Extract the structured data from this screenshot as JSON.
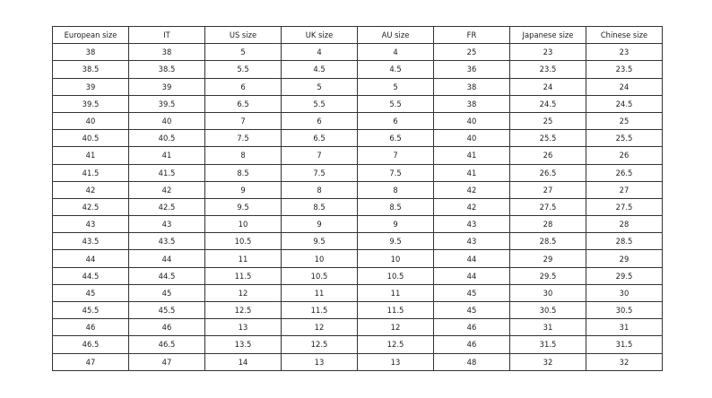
{
  "table": {
    "headers": [
      "European size",
      "IT",
      "US size",
      "UK size",
      "AU size",
      "FR",
      "Japanese size",
      "Chinese size"
    ],
    "rows": [
      [
        "38",
        "38",
        "5",
        "4",
        "4",
        "25",
        "23",
        "23"
      ],
      [
        "38.5",
        "38.5",
        "5.5",
        "4.5",
        "4.5",
        "36",
        "23.5",
        "23.5"
      ],
      [
        "39",
        "39",
        "6",
        "5",
        "5",
        "38",
        "24",
        "24"
      ],
      [
        "39.5",
        "39.5",
        "6.5",
        "5.5",
        "5.5",
        "38",
        "24.5",
        "24.5"
      ],
      [
        "40",
        "40",
        "7",
        "6",
        "6",
        "40",
        "25",
        "25"
      ],
      [
        "40.5",
        "40.5",
        "7.5",
        "6.5",
        "6.5",
        "40",
        "25.5",
        "25.5"
      ],
      [
        "41",
        "41",
        "8",
        "7",
        "7",
        "41",
        "26",
        "26"
      ],
      [
        "41.5",
        "41.5",
        "8.5",
        "7.5",
        "7.5",
        "41",
        "26.5",
        "26.5"
      ],
      [
        "42",
        "42",
        "9",
        "8",
        "8",
        "42",
        "27",
        "27"
      ],
      [
        "42.5",
        "42.5",
        "9.5",
        "8.5",
        "8.5",
        "42",
        "27.5",
        "27.5"
      ],
      [
        "43",
        "43",
        "10",
        "9",
        "9",
        "43",
        "28",
        "28"
      ],
      [
        "43.5",
        "43.5",
        "10.5",
        "9.5",
        "9.5",
        "43",
        "28.5",
        "28.5"
      ],
      [
        "44",
        "44",
        "11",
        "10",
        "10",
        "44",
        "29",
        "29"
      ],
      [
        "44.5",
        "44.5",
        "11.5",
        "10.5",
        "10.5",
        "44",
        "29.5",
        "29.5"
      ],
      [
        "45",
        "45",
        "12",
        "11",
        "11",
        "45",
        "30",
        "30"
      ],
      [
        "45.5",
        "45.5",
        "12.5",
        "11.5",
        "11.5",
        "45",
        "30.5",
        "30.5"
      ],
      [
        "46",
        "46",
        "13",
        "12",
        "12",
        "46",
        "31",
        "31"
      ],
      [
        "46.5",
        "46.5",
        "13.5",
        "12.5",
        "12.5",
        "46",
        "31.5",
        "31.5"
      ],
      [
        "47",
        "47",
        "14",
        "13",
        "13",
        "48",
        "32",
        "32"
      ]
    ]
  }
}
